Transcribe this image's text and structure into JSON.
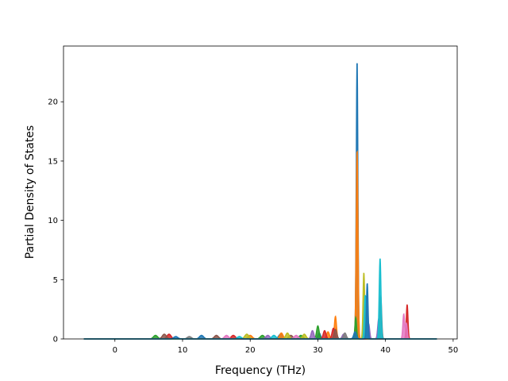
{
  "chart_data": {
    "type": "area",
    "title": "",
    "xlabel": "Frequency (THz)",
    "ylabel": "Partial Density of States",
    "xlim": [
      -7.6,
      50.6
    ],
    "ylim": [
      0,
      24.7
    ],
    "xticks": [
      0,
      10,
      20,
      30,
      40,
      50
    ],
    "yticks": [
      0,
      5,
      10,
      15,
      20
    ],
    "x_range_data": [
      -4.6,
      47.6
    ],
    "grid": false,
    "legend": "none",
    "series": [
      {
        "color": "#1f77b4",
        "peaks": [
          [
            35.8,
            23.5,
            0.12
          ],
          [
            37.1,
            3.6,
            0.15
          ],
          [
            24.5,
            0.4,
            0.3
          ],
          [
            12.8,
            0.3,
            0.3
          ],
          [
            30.2,
            0.5,
            0.2
          ]
        ]
      },
      {
        "color": "#ff7f0e",
        "peaks": [
          [
            35.8,
            15.9,
            0.13
          ],
          [
            32.6,
            1.9,
            0.15
          ],
          [
            24.6,
            0.5,
            0.25
          ],
          [
            31.5,
            0.6,
            0.2
          ],
          [
            20.0,
            0.3,
            0.3
          ]
        ]
      },
      {
        "color": "#2ca02c",
        "peaks": [
          [
            30.0,
            1.1,
            0.18
          ],
          [
            35.6,
            1.8,
            0.12
          ],
          [
            21.8,
            0.3,
            0.3
          ],
          [
            27.5,
            0.3,
            0.3
          ],
          [
            6.0,
            0.3,
            0.3
          ]
        ]
      },
      {
        "color": "#d62728",
        "peaks": [
          [
            43.2,
            2.9,
            0.12
          ],
          [
            32.3,
            0.9,
            0.2
          ],
          [
            31.0,
            0.7,
            0.2
          ],
          [
            8.0,
            0.4,
            0.3
          ],
          [
            17.5,
            0.3,
            0.3
          ]
        ]
      },
      {
        "color": "#9467bd",
        "peaks": [
          [
            37.5,
            1.3,
            0.15
          ],
          [
            39.0,
            1.7,
            0.15
          ],
          [
            29.2,
            0.7,
            0.2
          ],
          [
            22.6,
            0.3,
            0.3
          ],
          [
            33.8,
            0.4,
            0.2
          ]
        ]
      },
      {
        "color": "#8c564b",
        "peaks": [
          [
            32.6,
            0.8,
            0.2
          ],
          [
            7.3,
            0.4,
            0.3
          ],
          [
            15.0,
            0.3,
            0.3
          ],
          [
            26.0,
            0.3,
            0.3
          ]
        ]
      },
      {
        "color": "#e377c2",
        "peaks": [
          [
            42.7,
            2.1,
            0.13
          ],
          [
            43.1,
            1.3,
            0.12
          ],
          [
            26.8,
            0.3,
            0.3
          ],
          [
            16.5,
            0.3,
            0.3
          ]
        ]
      },
      {
        "color": "#7f7f7f",
        "peaks": [
          [
            39.3,
            3.6,
            0.13
          ],
          [
            34.0,
            0.5,
            0.2
          ],
          [
            11.0,
            0.2,
            0.3
          ]
        ]
      },
      {
        "color": "#bcbd22",
        "peaks": [
          [
            36.8,
            5.6,
            0.12
          ],
          [
            19.5,
            0.4,
            0.3
          ],
          [
            25.5,
            0.5,
            0.25
          ],
          [
            28.0,
            0.4,
            0.25
          ]
        ]
      },
      {
        "color": "#17becf",
        "peaks": [
          [
            39.2,
            6.8,
            0.13
          ],
          [
            37.0,
            3.7,
            0.13
          ],
          [
            23.5,
            0.3,
            0.3
          ],
          [
            18.4,
            0.2,
            0.3
          ]
        ]
      },
      {
        "color": "#1f77b4",
        "peaks": [
          [
            37.3,
            4.7,
            0.12
          ],
          [
            35.5,
            0.6,
            0.2
          ],
          [
            9.0,
            0.2,
            0.3
          ]
        ]
      }
    ]
  }
}
